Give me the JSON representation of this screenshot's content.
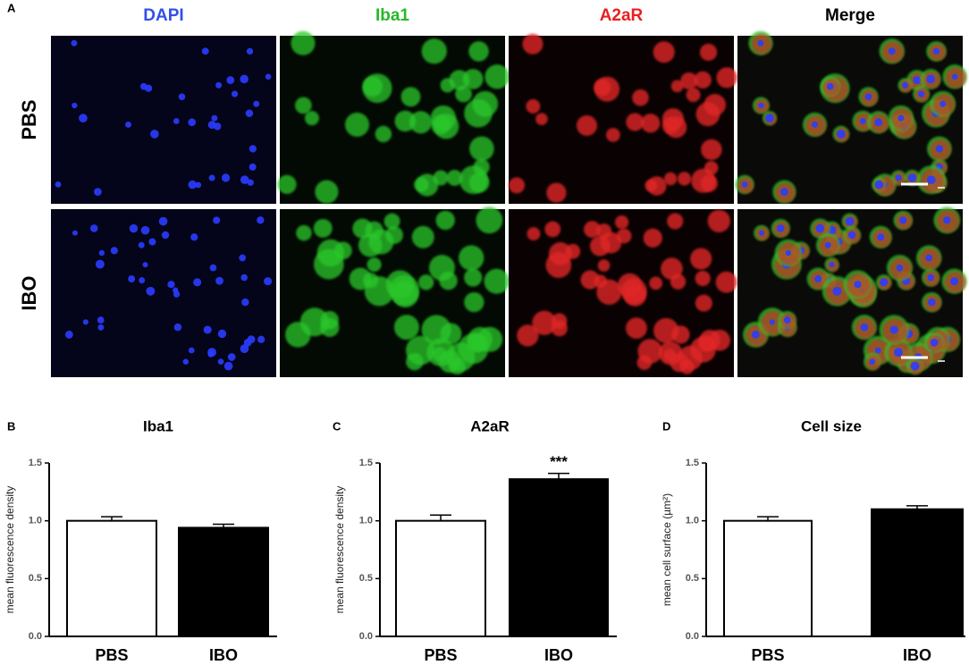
{
  "panel_labels": [
    "A",
    "B",
    "C",
    "D"
  ],
  "image_panel": {
    "columns": [
      "DAPI",
      "Iba1",
      "A2aR",
      "Merge"
    ],
    "rows": [
      "PBS",
      "IBO"
    ]
  },
  "chart_data": [
    {
      "type": "bar",
      "title": "Iba1",
      "y_label": "mean fluorescence density",
      "categories": [
        "PBS",
        "IBO"
      ],
      "values": [
        1.0,
        0.94
      ],
      "errors": [
        0.035,
        0.03
      ],
      "colors": [
        "#ffffff",
        "#000000"
      ],
      "ylim": [
        0,
        1.5
      ],
      "yticks": [
        {
          "value": 0,
          "label": "0.0"
        },
        0.5,
        {
          "value": 1,
          "label": "1.0"
        },
        1.5
      ]
    },
    {
      "type": "bar",
      "title": "A2aR",
      "y_label": "mean fluorescence density",
      "categories": [
        "PBS",
        "IBO"
      ],
      "values": [
        1.0,
        1.36
      ],
      "errors": [
        0.05,
        0.05
      ],
      "colors": [
        "#ffffff",
        "#000000"
      ],
      "ylim": [
        0,
        1.5
      ],
      "yticks": [
        {
          "value": 0,
          "label": "0.0"
        },
        0.5,
        {
          "value": 1,
          "label": "1.0"
        },
        1.5
      ],
      "annotations": [
        {
          "text": "***",
          "x": "IBO"
        }
      ]
    },
    {
      "type": "bar",
      "title": "Cell size",
      "y_label": "mean cell surface (µm²)",
      "categories": [
        "PBS",
        "IBO"
      ],
      "values": [
        1.0,
        1.1
      ],
      "errors": [
        0.035,
        0.03
      ],
      "colors": [
        "#ffffff",
        "#000000"
      ],
      "ylim": [
        0,
        1.5
      ],
      "yticks": [
        {
          "value": 0,
          "label": "0.0"
        },
        0.5,
        {
          "value": 1,
          "label": "1.0"
        },
        1.5
      ]
    }
  ]
}
